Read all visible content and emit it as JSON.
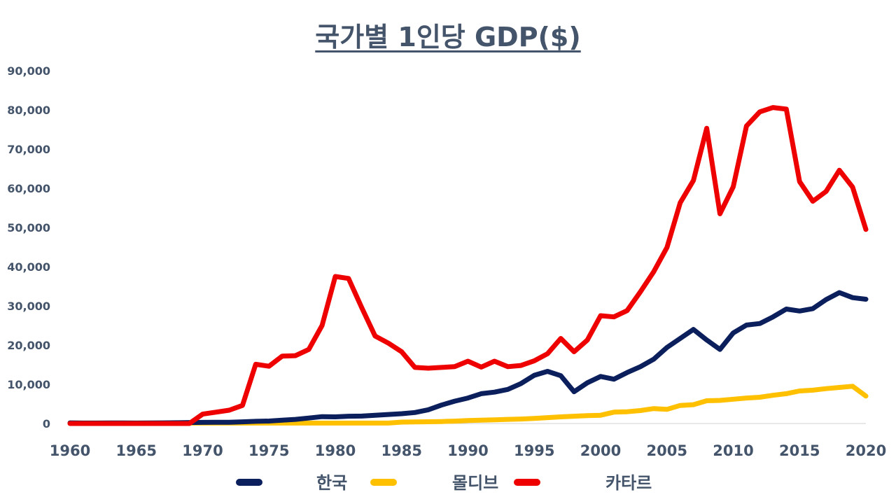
{
  "chart_data": {
    "type": "line",
    "title": "국가별 1인당 GDP($)",
    "xlabel": "",
    "ylabel": "",
    "xlim": [
      1960,
      2020
    ],
    "ylim": [
      0,
      90000
    ],
    "yticks": [
      "0",
      "10,000",
      "20,000",
      "30,000",
      "40,000",
      "50,000",
      "60,000",
      "70,000",
      "80,000",
      "90,000"
    ],
    "xticks": [
      "1960",
      "1965",
      "1970",
      "1975",
      "1980",
      "1985",
      "1990",
      "1995",
      "2000",
      "2005",
      "2010",
      "2015",
      "2020"
    ],
    "grid": false,
    "legend_position": "bottom",
    "x": [
      1960,
      1961,
      1962,
      1963,
      1964,
      1965,
      1966,
      1967,
      1968,
      1969,
      1970,
      1971,
      1972,
      1973,
      1974,
      1975,
      1976,
      1977,
      1978,
      1979,
      1980,
      1981,
      1982,
      1983,
      1984,
      1985,
      1986,
      1987,
      1988,
      1989,
      1990,
      1991,
      1992,
      1993,
      1994,
      1995,
      1996,
      1997,
      1998,
      1999,
      2000,
      2001,
      2002,
      2003,
      2004,
      2005,
      2006,
      2007,
      2008,
      2009,
      2010,
      2011,
      2012,
      2013,
      2014,
      2015,
      2016,
      2017,
      2018,
      2019,
      2020
    ],
    "series": [
      {
        "name": "한국",
        "color": "#0b1f5c",
        "values": [
          160,
          100,
          110,
          140,
          120,
          110,
          130,
          160,
          200,
          250,
          280,
          300,
          330,
          420,
          560,
          620,
          840,
          1060,
          1400,
          1750,
          1700,
          1850,
          1900,
          2100,
          2300,
          2500,
          2800,
          3500,
          4700,
          5700,
          6500,
          7600,
          8000,
          8700,
          10200,
          12300,
          13300,
          12200,
          8100,
          10400,
          12000,
          11300,
          13000,
          14500,
          16400,
          19400,
          21700,
          24000,
          21300,
          18900,
          23100,
          25100,
          25500,
          27200,
          29200,
          28700,
          29300,
          31600,
          33400,
          32100,
          31700
        ]
      },
      {
        "name": "몰디브",
        "color": "#ffc000",
        "values": [
          100,
          100,
          100,
          100,
          100,
          100,
          100,
          100,
          100,
          100,
          100,
          100,
          100,
          100,
          100,
          100,
          100,
          100,
          100,
          100,
          100,
          100,
          100,
          100,
          100,
          350,
          400,
          450,
          500,
          600,
          750,
          850,
          950,
          1050,
          1150,
          1300,
          1500,
          1700,
          1850,
          2000,
          2100,
          2900,
          3000,
          3300,
          3800,
          3600,
          4600,
          4800,
          5800,
          5900,
          6200,
          6500,
          6700,
          7200,
          7600,
          8300,
          8500,
          8900,
          9200,
          9500,
          7000
        ]
      },
      {
        "name": "카타르",
        "color": "#ee0000",
        "values": [
          0,
          0,
          0,
          0,
          0,
          0,
          0,
          0,
          0,
          0,
          2400,
          2900,
          3400,
          4600,
          15100,
          14600,
          17200,
          17300,
          18900,
          25000,
          37500,
          37000,
          29500,
          22300,
          20500,
          18300,
          14300,
          14100,
          14300,
          14500,
          15900,
          14400,
          15900,
          14500,
          14800,
          16000,
          17800,
          21700,
          18300,
          21300,
          27500,
          27200,
          28800,
          33600,
          38700,
          44900,
          56300,
          62000,
          75300,
          53500,
          60400,
          75900,
          79500,
          80600,
          80200,
          61700,
          56700,
          59200,
          64600,
          60300,
          49500
        ]
      }
    ]
  }
}
